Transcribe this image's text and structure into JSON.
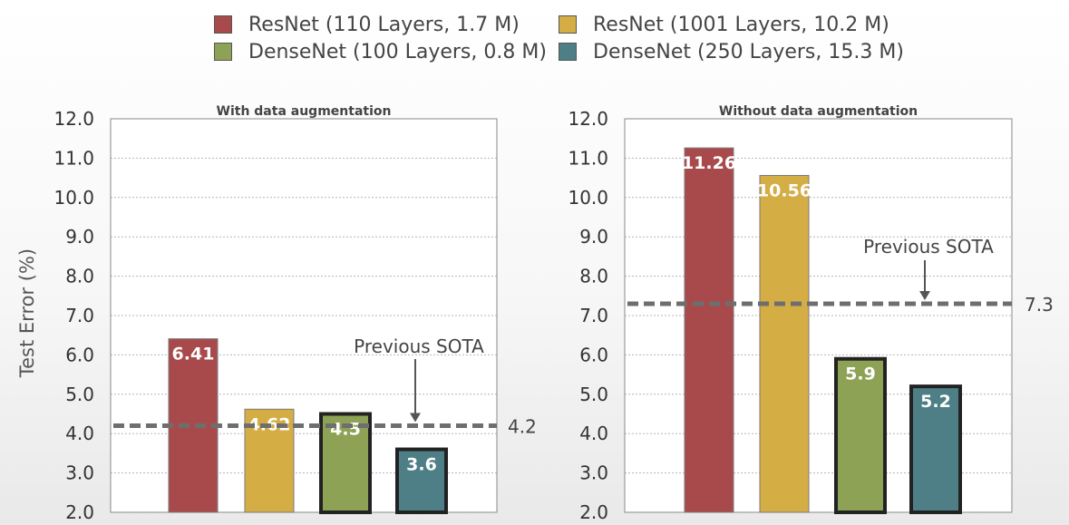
{
  "chart_data": {
    "type": "bar",
    "ylabel": "Test Error (%)",
    "ylim": [
      2.0,
      12.0
    ],
    "yticks": [
      "2.0",
      "3.0",
      "4.0",
      "5.0",
      "6.0",
      "7.0",
      "8.0",
      "9.0",
      "10.0",
      "11.0",
      "12.0"
    ],
    "grid": true,
    "legend_position": "top",
    "series": [
      {
        "name": "ResNet (110 Layers, 1.7 M)",
        "color": "#a84a4c"
      },
      {
        "name": "ResNet (1001 Layers, 10.2 M)",
        "color": "#d4ad45"
      },
      {
        "name": "DenseNet (100 Layers, 0.8 M)",
        "color": "#8da255"
      },
      {
        "name": "DenseNet (250 Layers, 15.3 M)",
        "color": "#4e7f86"
      }
    ],
    "panels": [
      {
        "title": "With data augmentation",
        "values": [
          6.41,
          4.62,
          4.5,
          3.6
        ],
        "labels": [
          "6.41",
          "4.62",
          "4.5",
          "3.6"
        ],
        "reference": {
          "value": 4.2,
          "label": "4.2",
          "annotation": "Previous SOTA"
        }
      },
      {
        "title": "Without data augmentation",
        "values": [
          11.26,
          10.56,
          5.9,
          5.2
        ],
        "labels": [
          "11.26",
          "10.56",
          "5.9",
          "5.2"
        ],
        "reference": {
          "value": 7.3,
          "label": "7.3",
          "annotation": "Previous SOTA"
        }
      }
    ]
  }
}
